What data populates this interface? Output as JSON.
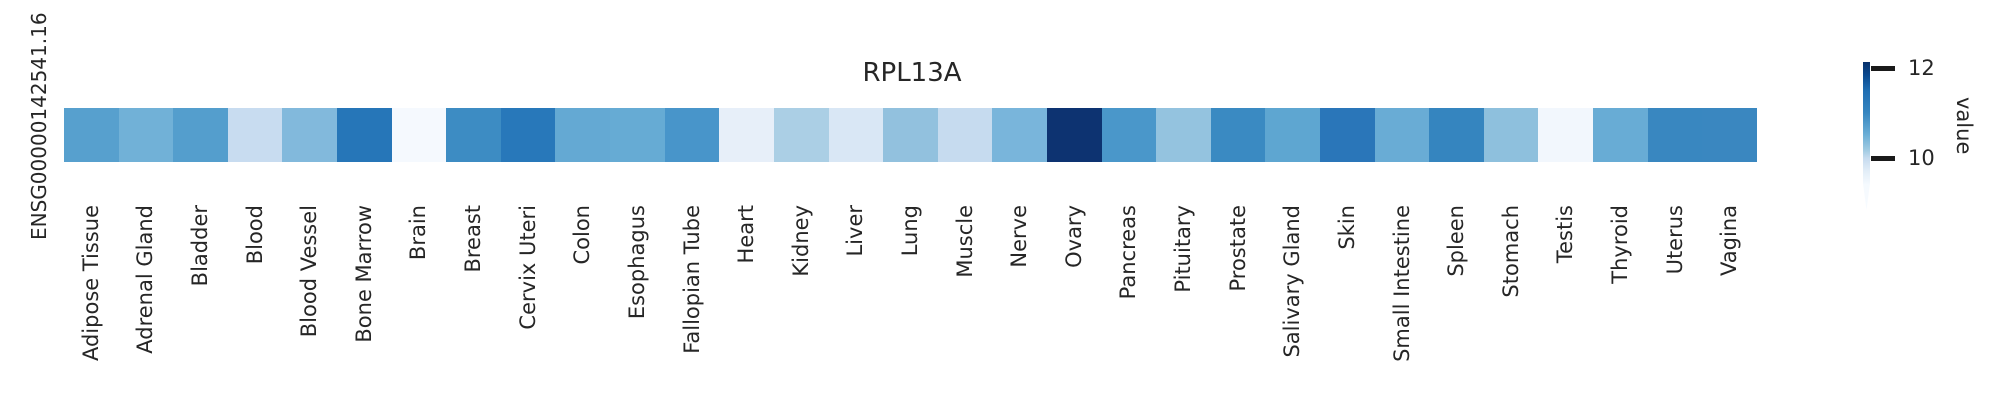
{
  "figure": {
    "title": "RPL13A",
    "row_label": "ENSG00000142541.16",
    "background": "#ffffff"
  },
  "chart_data": {
    "type": "heatmap",
    "title": "RPL13A",
    "rows": [
      "ENSG00000142541.16"
    ],
    "categories": [
      "Adipose Tissue",
      "Adrenal Gland",
      "Bladder",
      "Blood",
      "Blood Vessel",
      "Bone Marrow",
      "Brain",
      "Breast",
      "Cervix Uteri",
      "Colon",
      "Esophagus",
      "Fallopian Tube",
      "Heart",
      "Kidney",
      "Liver",
      "Lung",
      "Muscle",
      "Nerve",
      "Ovary",
      "Pancreas",
      "Pituitary",
      "Prostate",
      "Salivary Gland",
      "Skin",
      "Small Intestine",
      "Spleen",
      "Stomach",
      "Testis",
      "Thyroid",
      "Uterus",
      "Vagina"
    ],
    "values_estimated": [
      [
        10.8,
        10.6,
        10.8,
        9.9,
        10.45,
        11.3,
        9.35,
        11.0,
        11.25,
        10.7,
        10.7,
        10.95,
        9.5,
        10.15,
        9.7,
        10.35,
        9.95,
        10.5,
        12.1,
        10.9,
        10.3,
        11.05,
        10.75,
        11.3,
        10.65,
        11.15,
        10.4,
        9.3,
        10.65,
        11.1,
        11.1
      ]
    ],
    "cell_colors": [
      [
        "#57a0ce",
        "#71b1d7",
        "#549ecd",
        "#c8dcf0",
        "#82b9dc",
        "#2676b8",
        "#f5f9fe",
        "#3d8cc3",
        "#2878ba",
        "#64a9d3",
        "#66abd4",
        "#4895ca",
        "#e7eff9",
        "#abcfe5",
        "#d9e7f5",
        "#92c1de",
        "#c6dbef",
        "#79b5db",
        "#0d3371",
        "#4a97ca",
        "#94c3df",
        "#3a8ac2",
        "#5ea6d1",
        "#2a76b9",
        "#69acd5",
        "#3585bf",
        "#8ec0dd",
        "#f2f7fd",
        "#68acd5",
        "#3987c0",
        "#3a87c0"
      ]
    ],
    "colorbar": {
      "label": "value",
      "tick_labels": [
        "12",
        "10"
      ],
      "ticks": [
        12,
        10
      ],
      "vmin_approx": 9.2,
      "vmax_approx": 12.1,
      "colormap": "Blues",
      "position": "right",
      "extend": "min-taper"
    },
    "xlabel": "",
    "ylabel": "",
    "grid": false,
    "legend": false
  },
  "colors": {
    "text": "#262626",
    "tick_mark": "#1a1a1a",
    "background": "#ffffff",
    "cmap_top": "#08306b",
    "cmap_bottom": "#f7fbff"
  }
}
